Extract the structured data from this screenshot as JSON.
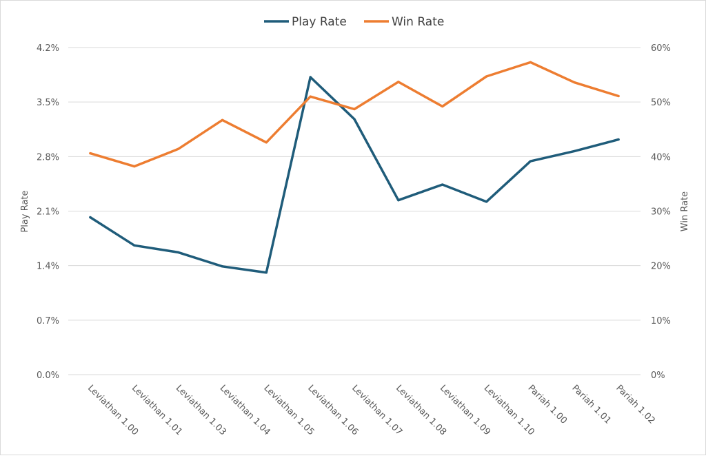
{
  "chart_data": {
    "type": "line",
    "categories": [
      "Leviathan 1.00",
      "Leviathan 1.01",
      "Leviathan 1.03",
      "Leviathan 1.04",
      "Leviathan 1.05",
      "Leviathan 1.06",
      "Leviathan 1.07",
      "Leviathan 1.08",
      "Leviathan 1.09",
      "Leviathan 1.10",
      "Pariah 1.00",
      "Pariah 1.01",
      "Pariah 1.02"
    ],
    "series": [
      {
        "name": "Play Rate",
        "axis": "left",
        "color": "#1f5c7a",
        "values": [
          2.02,
          1.66,
          1.57,
          1.39,
          1.31,
          3.82,
          3.28,
          2.24,
          2.44,
          2.22,
          2.74,
          2.87,
          3.02
        ]
      },
      {
        "name": "Win Rate",
        "axis": "right",
        "color": "#ed7d31",
        "values": [
          0.406,
          0.382,
          0.414,
          0.467,
          0.426,
          0.51,
          0.487,
          0.537,
          0.492,
          0.547,
          0.573,
          0.536,
          0.511
        ]
      }
    ],
    "y_left": {
      "label": "Play Rate",
      "ylim": [
        0,
        4.2
      ],
      "ticks": [
        0,
        0.7,
        1.4,
        2.1,
        2.8,
        3.5,
        4.2
      ],
      "tick_labels": [
        "0.0%",
        "0.7%",
        "1.4%",
        "2.1%",
        "2.8%",
        "3.5%",
        "4.2%"
      ]
    },
    "y_right": {
      "label": "Win Rate",
      "ylim": [
        0,
        0.6
      ],
      "ticks": [
        0,
        0.1,
        0.2,
        0.3,
        0.4,
        0.5,
        0.6
      ],
      "tick_labels": [
        "0%",
        "10%",
        "20%",
        "30%",
        "40%",
        "50%",
        "60%"
      ]
    },
    "grid": true,
    "legend_position": "top-center"
  }
}
